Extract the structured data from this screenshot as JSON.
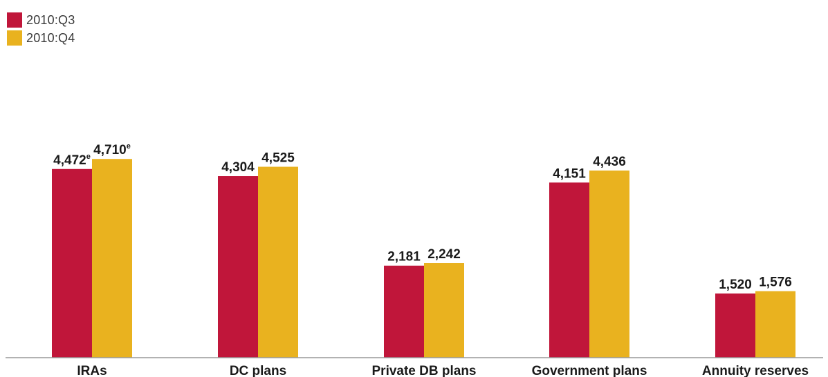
{
  "chart_data": {
    "type": "bar",
    "categories": [
      "IRAs",
      "DC plans",
      "Private DB plans",
      "Government plans",
      "Annuity reserves"
    ],
    "series": [
      {
        "name": "2010:Q3",
        "values": [
          4472,
          4304,
          2181,
          4151,
          1520
        ],
        "labels": [
          "4,472",
          "4,304",
          "2,181",
          "4,151",
          "1,520"
        ],
        "superscripts": [
          "e",
          "",
          "",
          "",
          ""
        ]
      },
      {
        "name": "2010:Q4",
        "values": [
          4710,
          4525,
          2242,
          4436,
          1576
        ],
        "labels": [
          "4,710",
          "4,525",
          "2,242",
          "4,436",
          "1,576"
        ],
        "superscripts": [
          "e",
          "",
          "",
          "",
          ""
        ]
      }
    ],
    "title": "",
    "xlabel": "",
    "ylabel": "",
    "ylim": [
      0,
      5000
    ],
    "grid": false,
    "legend_position": "top-left"
  },
  "colors": {
    "series_0": "#c0163a",
    "series_1": "#e9b21f",
    "axis": "#999999"
  }
}
